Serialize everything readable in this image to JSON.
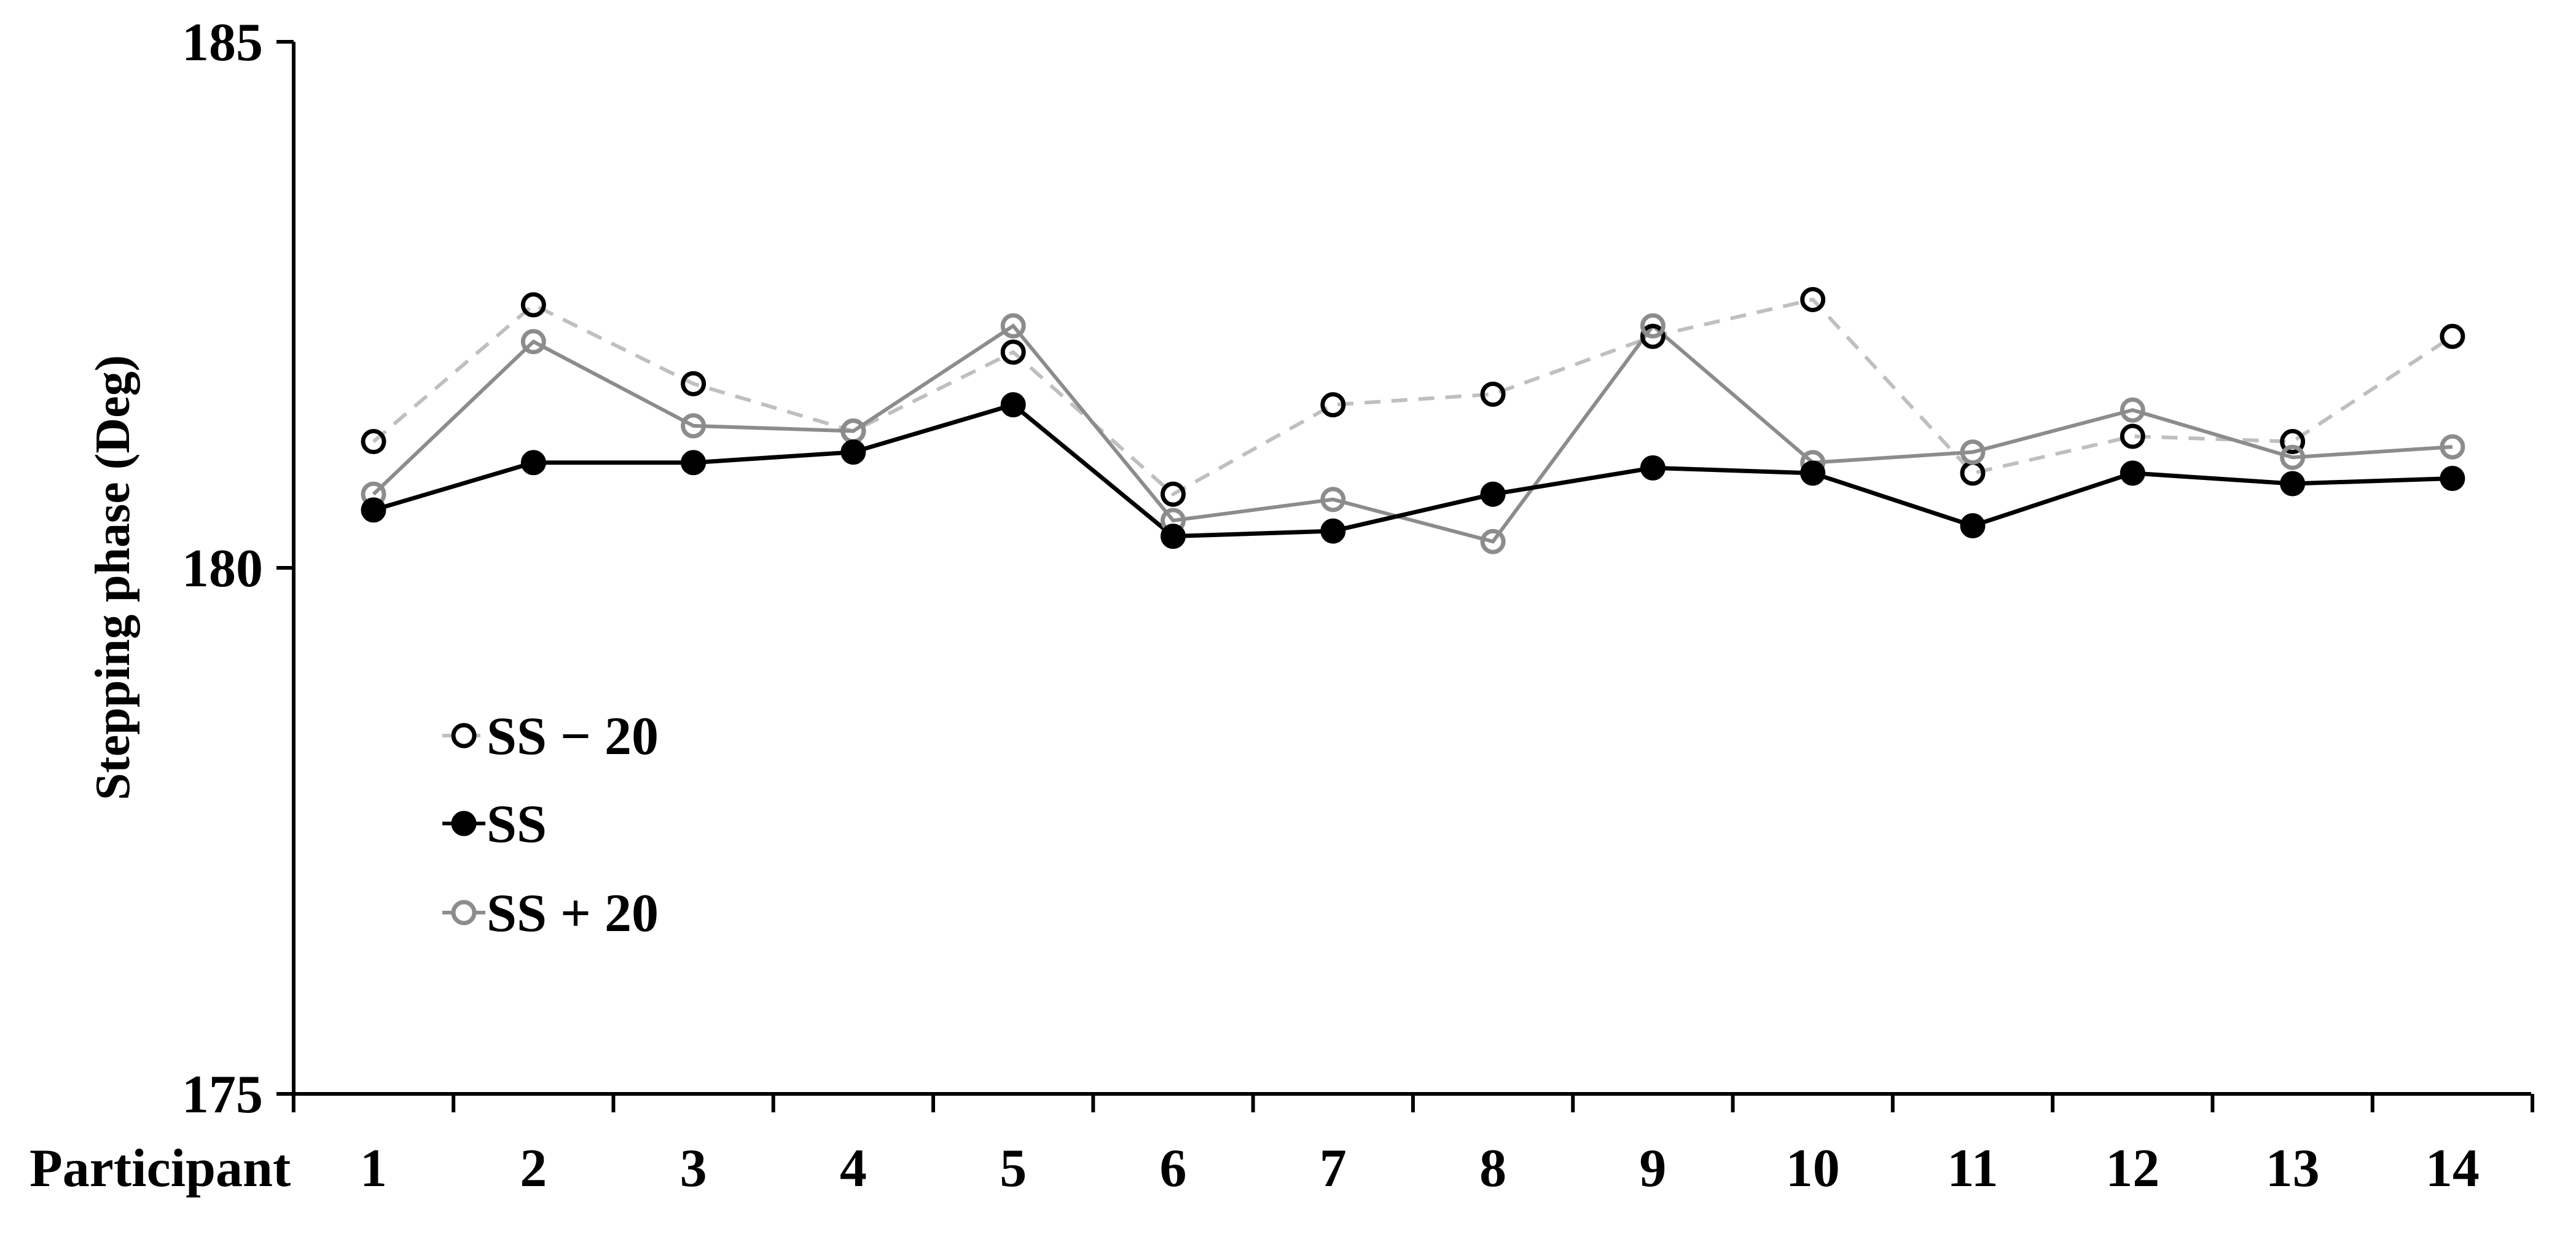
{
  "chart_data": {
    "type": "line",
    "title": "",
    "xlabel": "Participant",
    "ylabel": "Stepping phase (Deg)",
    "categories": [
      "1",
      "2",
      "3",
      "4",
      "5",
      "6",
      "7",
      "8",
      "9",
      "10",
      "11",
      "12",
      "13",
      "14"
    ],
    "ylim": [
      175,
      185
    ],
    "yticks": [
      175,
      180,
      185
    ],
    "grid": false,
    "legend_position": "left",
    "series": [
      {
        "name": "SS − 20",
        "color": "#bfbfbf",
        "marker_edge": "#000000",
        "marker_fill": "none",
        "line_style": "dashed",
        "values": [
          181.2,
          182.5,
          181.75,
          181.3,
          182.05,
          180.7,
          181.55,
          181.65,
          182.2,
          182.55,
          180.9,
          181.25,
          181.2,
          182.2
        ]
      },
      {
        "name": "SS",
        "color": "#000000",
        "marker_edge": "#000000",
        "marker_fill": "#000000",
        "line_style": "solid",
        "values": [
          180.55,
          181.0,
          181.0,
          181.1,
          181.55,
          180.3,
          180.35,
          180.7,
          180.95,
          180.9,
          180.4,
          180.9,
          180.8,
          180.85
        ]
      },
      {
        "name": "SS + 20",
        "color": "#8c8c8c",
        "marker_edge": "#8c8c8c",
        "marker_fill": "none",
        "line_style": "solid",
        "values": [
          180.7,
          182.15,
          181.35,
          181.3,
          182.3,
          180.45,
          180.65,
          180.25,
          182.3,
          181.0,
          181.1,
          181.5,
          181.05,
          181.15
        ]
      }
    ]
  }
}
